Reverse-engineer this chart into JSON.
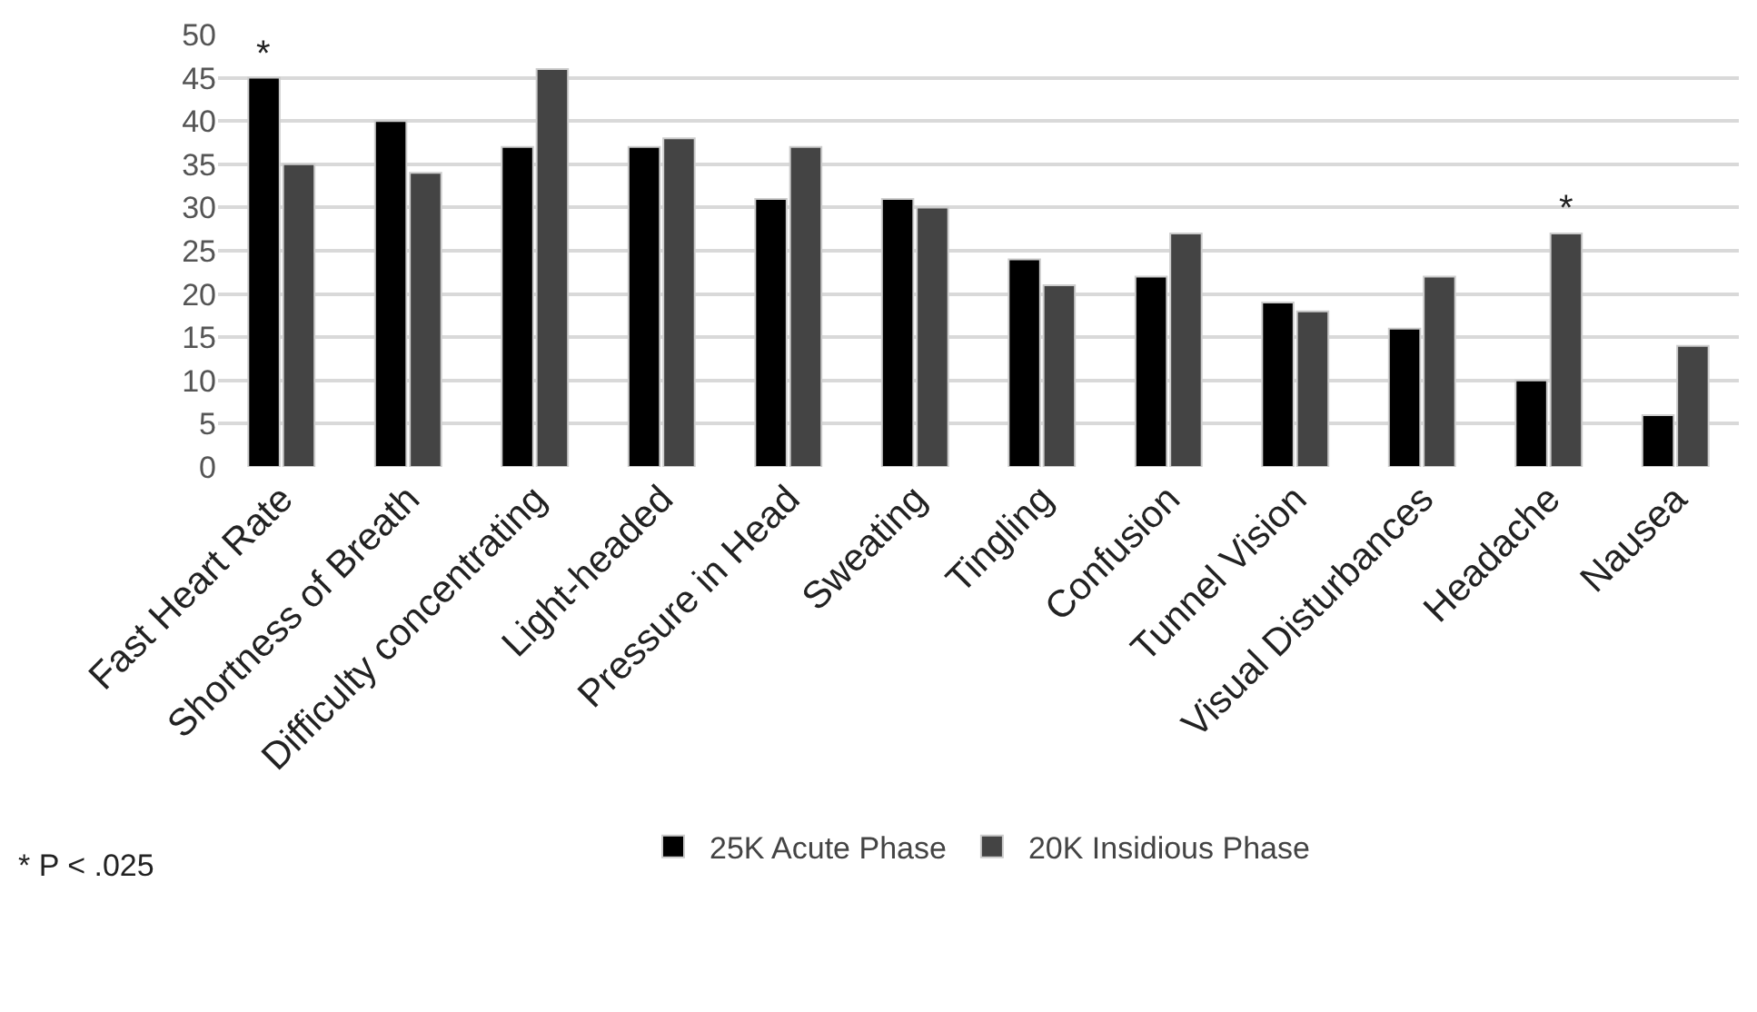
{
  "chart_data": {
    "type": "bar",
    "categories": [
      "Fast Heart Rate",
      "Shortness of Breath",
      "Difficulty concentrating",
      "Light-headed",
      "Pressure in Head",
      "Sweating",
      "Tingling",
      "Confusion",
      "Tunnel Vision",
      "Visual Disturbances",
      "Headache",
      "Nausea"
    ],
    "series": [
      {
        "name": "25K Acute Phase",
        "color": "#000000",
        "values": [
          45,
          40,
          37,
          37,
          31,
          31,
          24,
          22,
          19,
          16,
          10,
          6
        ]
      },
      {
        "name": "20K Insidious Phase",
        "color": "#444444",
        "values": [
          35,
          34,
          46,
          38,
          37,
          30,
          21,
          27,
          18,
          22,
          27,
          14
        ]
      }
    ],
    "ylim": [
      0,
      50
    ],
    "yticks": [
      0,
      5,
      10,
      15,
      20,
      25,
      30,
      35,
      40,
      45,
      50
    ],
    "grid": "y",
    "legend": "bottom",
    "annotations": [
      {
        "text": "*",
        "x": "Fast Heart Rate",
        "y": 45
      },
      {
        "text": "*",
        "x": "Headache",
        "y": 27
      },
      "* P < .025"
    ]
  }
}
